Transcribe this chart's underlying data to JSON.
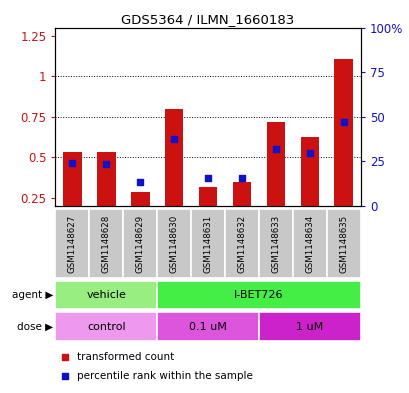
{
  "title": "GDS5364 / ILMN_1660183",
  "samples": [
    "GSM1148627",
    "GSM1148628",
    "GSM1148629",
    "GSM1148630",
    "GSM1148631",
    "GSM1148632",
    "GSM1148633",
    "GSM1148634",
    "GSM1148635"
  ],
  "red_values": [
    0.535,
    0.535,
    0.285,
    0.795,
    0.315,
    0.345,
    0.715,
    0.625,
    1.105
  ],
  "blue_values": [
    0.465,
    0.46,
    0.35,
    0.615,
    0.375,
    0.375,
    0.55,
    0.525,
    0.715
  ],
  "ylim": [
    0.2,
    1.3
  ],
  "yticks_left": [
    0.25,
    0.5,
    0.75,
    1.0,
    1.25
  ],
  "ytick_left_labels": [
    "0.25",
    "0.5",
    "0.75",
    "1",
    "1.25"
  ],
  "yticks_right_pct": [
    0,
    25,
    50,
    75,
    100
  ],
  "ytick_right_labels": [
    "0",
    "25",
    "50",
    "75",
    "100%"
  ],
  "hlines": [
    0.5,
    0.75,
    1.0
  ],
  "agent_groups": [
    {
      "label": "vehicle",
      "start": 0,
      "end": 3,
      "color": "#98EE80"
    },
    {
      "label": "I-BET726",
      "start": 3,
      "end": 9,
      "color": "#44EE44"
    }
  ],
  "dose_groups": [
    {
      "label": "control",
      "start": 0,
      "end": 3,
      "color": "#EE99EE"
    },
    {
      "label": "0.1 uM",
      "start": 3,
      "end": 6,
      "color": "#DD55DD"
    },
    {
      "label": "1 uM",
      "start": 6,
      "end": 9,
      "color": "#CC22CC"
    }
  ],
  "bar_color": "#CC1111",
  "dot_color": "#1111CC",
  "bar_width": 0.55,
  "dot_size": 22,
  "legend_red_label": "transformed count",
  "legend_blue_label": "percentile rank within the sample",
  "ylabel_left_color": "#CC1111",
  "ylabel_right_color": "#1111CC",
  "tick_bg_color": "#C8C8C8",
  "figure_width": 4.1,
  "figure_height": 3.93,
  "dpi": 100
}
